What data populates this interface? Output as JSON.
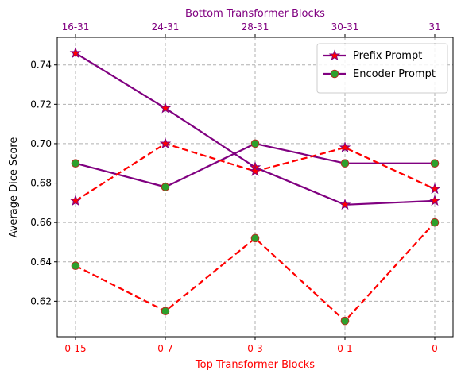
{
  "chart_data": {
    "type": "line",
    "ylabel": "Average Dice Score",
    "xlabel_bottom": "Top Transformer Blocks",
    "xlabel_top": "Bottom Transformer Blocks",
    "categories_bottom": [
      "0-15",
      "0-7",
      "0-3",
      "0-1",
      "0"
    ],
    "categories_top": [
      "16-31",
      "24-31",
      "28-31",
      "30-31",
      "31"
    ],
    "ylim": [
      0.602,
      0.754
    ],
    "yticks": [
      0.62,
      0.64,
      0.66,
      0.68,
      0.7,
      0.72,
      0.74
    ],
    "ytick_labels": [
      "0.62",
      "0.64",
      "0.66",
      "0.68",
      "0.70",
      "0.72",
      "0.74"
    ],
    "grid": true,
    "legend_position": "top-right",
    "colors": {
      "top_axis": "#800080",
      "bottom_axis": "#ff0000",
      "solid_line": "#800080",
      "dashed_line": "#ff0000",
      "star_fill": "#ff0000",
      "circle_fill": "#2ca02c"
    },
    "series": [
      {
        "name": "Prefix Prompt",
        "axis": "top",
        "style": "solid",
        "marker": "star",
        "values": [
          0.746,
          0.718,
          0.688,
          0.669,
          0.671
        ]
      },
      {
        "name": "Encoder Prompt",
        "axis": "top",
        "style": "solid",
        "marker": "circle",
        "values": [
          0.69,
          0.678,
          0.7,
          0.69,
          0.69
        ]
      },
      {
        "axis": "bottom",
        "style": "dashed",
        "marker": "star",
        "values": [
          0.671,
          0.7,
          0.686,
          0.698,
          0.677
        ]
      },
      {
        "axis": "bottom",
        "style": "dashed",
        "marker": "circle",
        "values": [
          0.638,
          0.615,
          0.652,
          0.61,
          0.66
        ]
      }
    ]
  }
}
